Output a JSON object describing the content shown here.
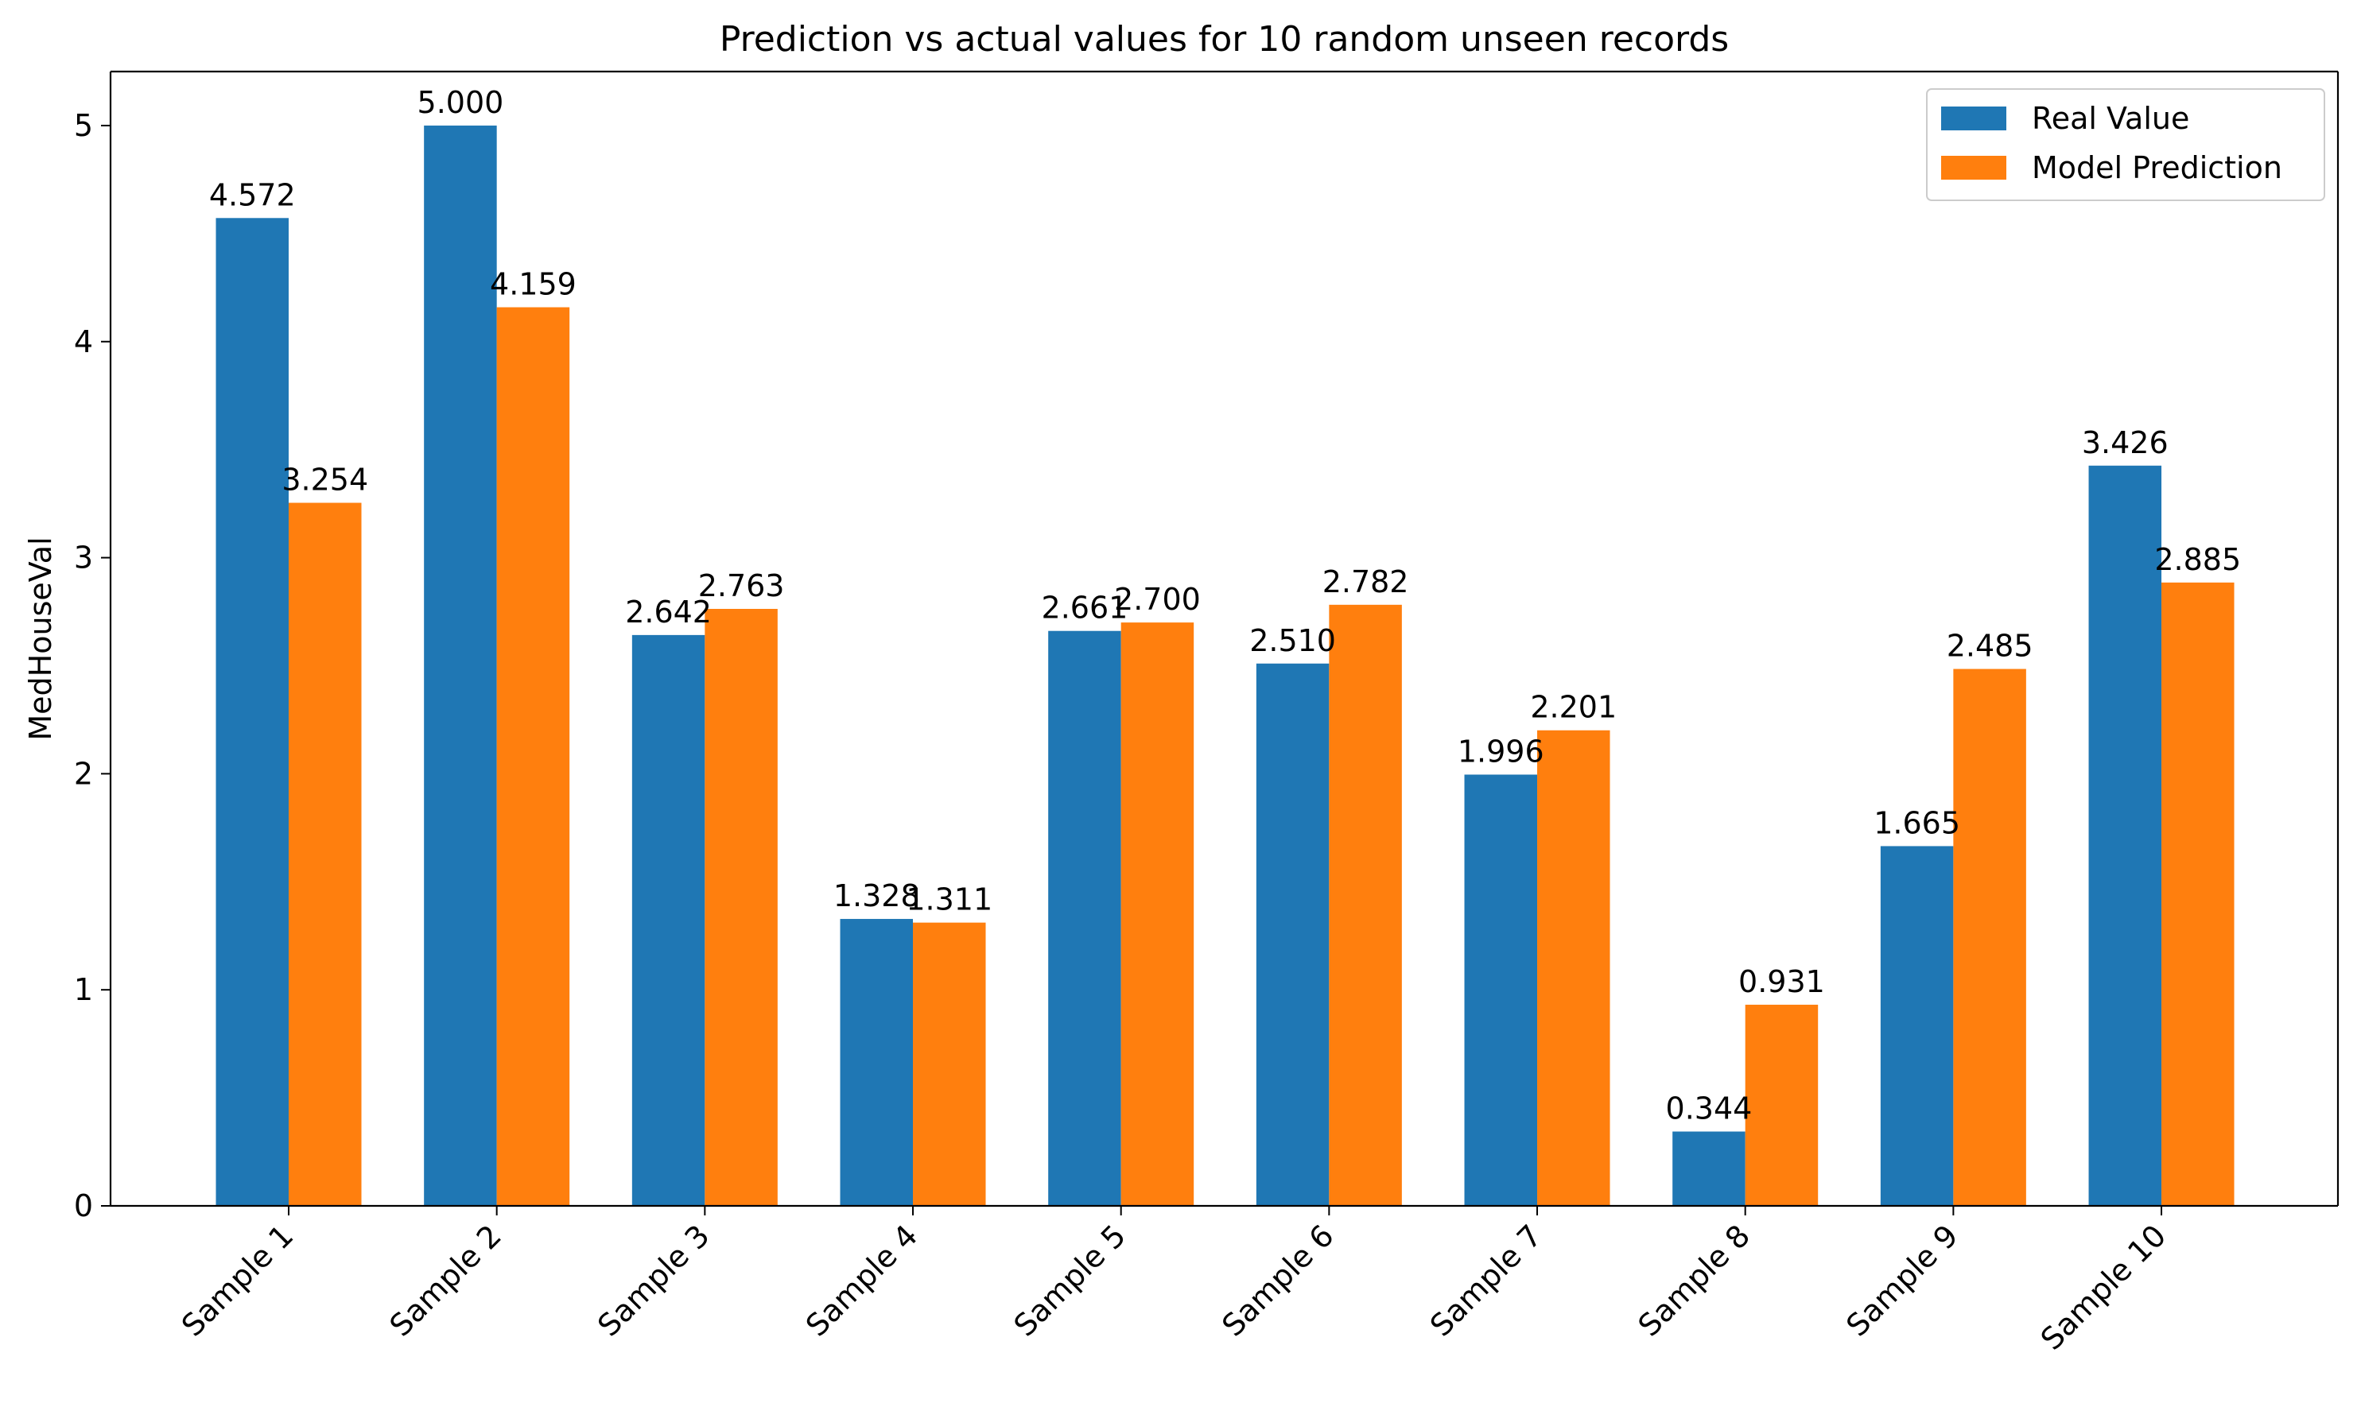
{
  "chart_data": {
    "type": "bar",
    "title": "Prediction vs actual values for 10 random unseen records",
    "xlabel": "",
    "ylabel": "MedHouseVal",
    "categories": [
      "Sample 1",
      "Sample 2",
      "Sample 3",
      "Sample 4",
      "Sample 5",
      "Sample 6",
      "Sample 7",
      "Sample 8",
      "Sample 9",
      "Sample 10"
    ],
    "series": [
      {
        "name": "Real Value",
        "color": "#1f77b4",
        "values": [
          4.572,
          5.0,
          2.642,
          1.328,
          2.661,
          2.51,
          1.996,
          0.344,
          1.665,
          3.426
        ],
        "labels": [
          "4.572",
          "5.000",
          "2.642",
          "1.328",
          "2.661",
          "2.510",
          "1.996",
          "0.344",
          "1.665",
          "3.426"
        ]
      },
      {
        "name": "Model Prediction",
        "color": "#ff7f0e",
        "values": [
          3.254,
          4.159,
          2.763,
          1.311,
          2.7,
          2.782,
          2.201,
          0.931,
          2.485,
          2.885
        ],
        "labels": [
          "3.254",
          "4.159",
          "2.763",
          "1.311",
          "2.700",
          "2.782",
          "2.201",
          "0.931",
          "2.485",
          "2.885"
        ]
      }
    ],
    "ylim": [
      0,
      5.25
    ],
    "yticks": [
      0,
      1,
      2,
      3,
      4,
      5
    ],
    "grid": false,
    "legend": "top-right",
    "xtick_rotation": 45
  }
}
